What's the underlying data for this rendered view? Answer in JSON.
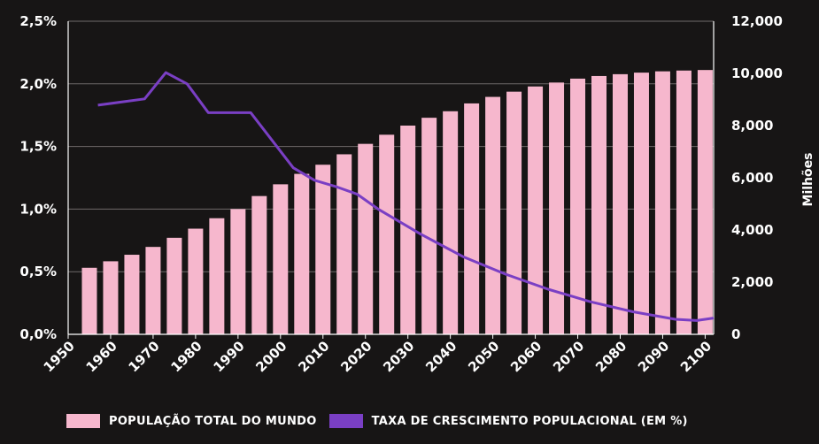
{
  "chart_data": {
    "type": "bar",
    "x": [
      1955,
      1960,
      1965,
      1970,
      1975,
      1980,
      1985,
      1990,
      1995,
      2000,
      2005,
      2010,
      2015,
      2020,
      2025,
      2030,
      2035,
      2040,
      2045,
      2050,
      2055,
      2060,
      2065,
      2070,
      2075,
      2080,
      2085,
      2090,
      2095,
      2100
    ],
    "xticks": [
      "1950",
      "1960",
      "1970",
      "1980",
      "1990",
      "2000",
      "2010",
      "2020",
      "2030",
      "2040",
      "2050",
      "2060",
      "2070",
      "2080",
      "2090",
      "2100"
    ],
    "xlim": [
      1950,
      2102
    ],
    "series": [
      {
        "name": "POPULAÇÃO TOTAL DO MUNDO",
        "kind": "bar",
        "axis": "right",
        "color": "#f6b7cd",
        "values": [
          2550,
          2800,
          3050,
          3350,
          3700,
          4050,
          4450,
          4800,
          5300,
          5750,
          6150,
          6500,
          6900,
          7300,
          7650,
          8000,
          8300,
          8550,
          8850,
          9100,
          9300,
          9500,
          9650,
          9800,
          9900,
          9970,
          10030,
          10080,
          10110,
          10130
        ]
      },
      {
        "name": "TAXA DE CRESCIMENTO POPULACIONAL (EM %)",
        "kind": "line",
        "axis": "left",
        "color": "#7a3fc4",
        "x": [
          1957,
          1968,
          1973,
          1978,
          1983,
          1993,
          2003,
          2008,
          2013,
          2018,
          2023,
          2033,
          2043,
          2053,
          2063,
          2073,
          2083,
          2093,
          2098,
          2102
        ],
        "values": [
          1.83,
          1.88,
          2.09,
          2.0,
          1.77,
          1.77,
          1.33,
          1.23,
          1.18,
          1.12,
          1.0,
          0.8,
          0.62,
          0.48,
          0.36,
          0.26,
          0.18,
          0.12,
          0.11,
          0.13
        ]
      }
    ],
    "y_left": {
      "ticks": [
        "0,0%",
        "0,5%",
        "1,0%",
        "1,5%",
        "2,0%",
        "2,5%"
      ],
      "values": [
        0,
        0.5,
        1.0,
        1.5,
        2.0,
        2.5
      ],
      "lim": [
        0,
        2.5
      ]
    },
    "y_right": {
      "ticks": [
        "0",
        "2,000",
        "4,000",
        "6,000",
        "8,000",
        "10,000",
        "12,000"
      ],
      "values": [
        0,
        2000,
        4000,
        6000,
        8000,
        10000,
        12000
      ],
      "lim": [
        0,
        12000
      ],
      "label": "Milhões"
    },
    "grid": true,
    "legend": "bottom"
  },
  "legend": {
    "items": [
      {
        "label": "POPULAÇÃO TOTAL DO MUNDO",
        "color": "#f6b7cd"
      },
      {
        "label": "TAXA DE CRESCIMENTO POPULACIONAL (EM %)",
        "color": "#7a3fc4"
      }
    ]
  },
  "colors": {
    "background": "#171515",
    "grid": "#6f6a6a",
    "axis": "#ffffff",
    "text": "#ffffff"
  }
}
